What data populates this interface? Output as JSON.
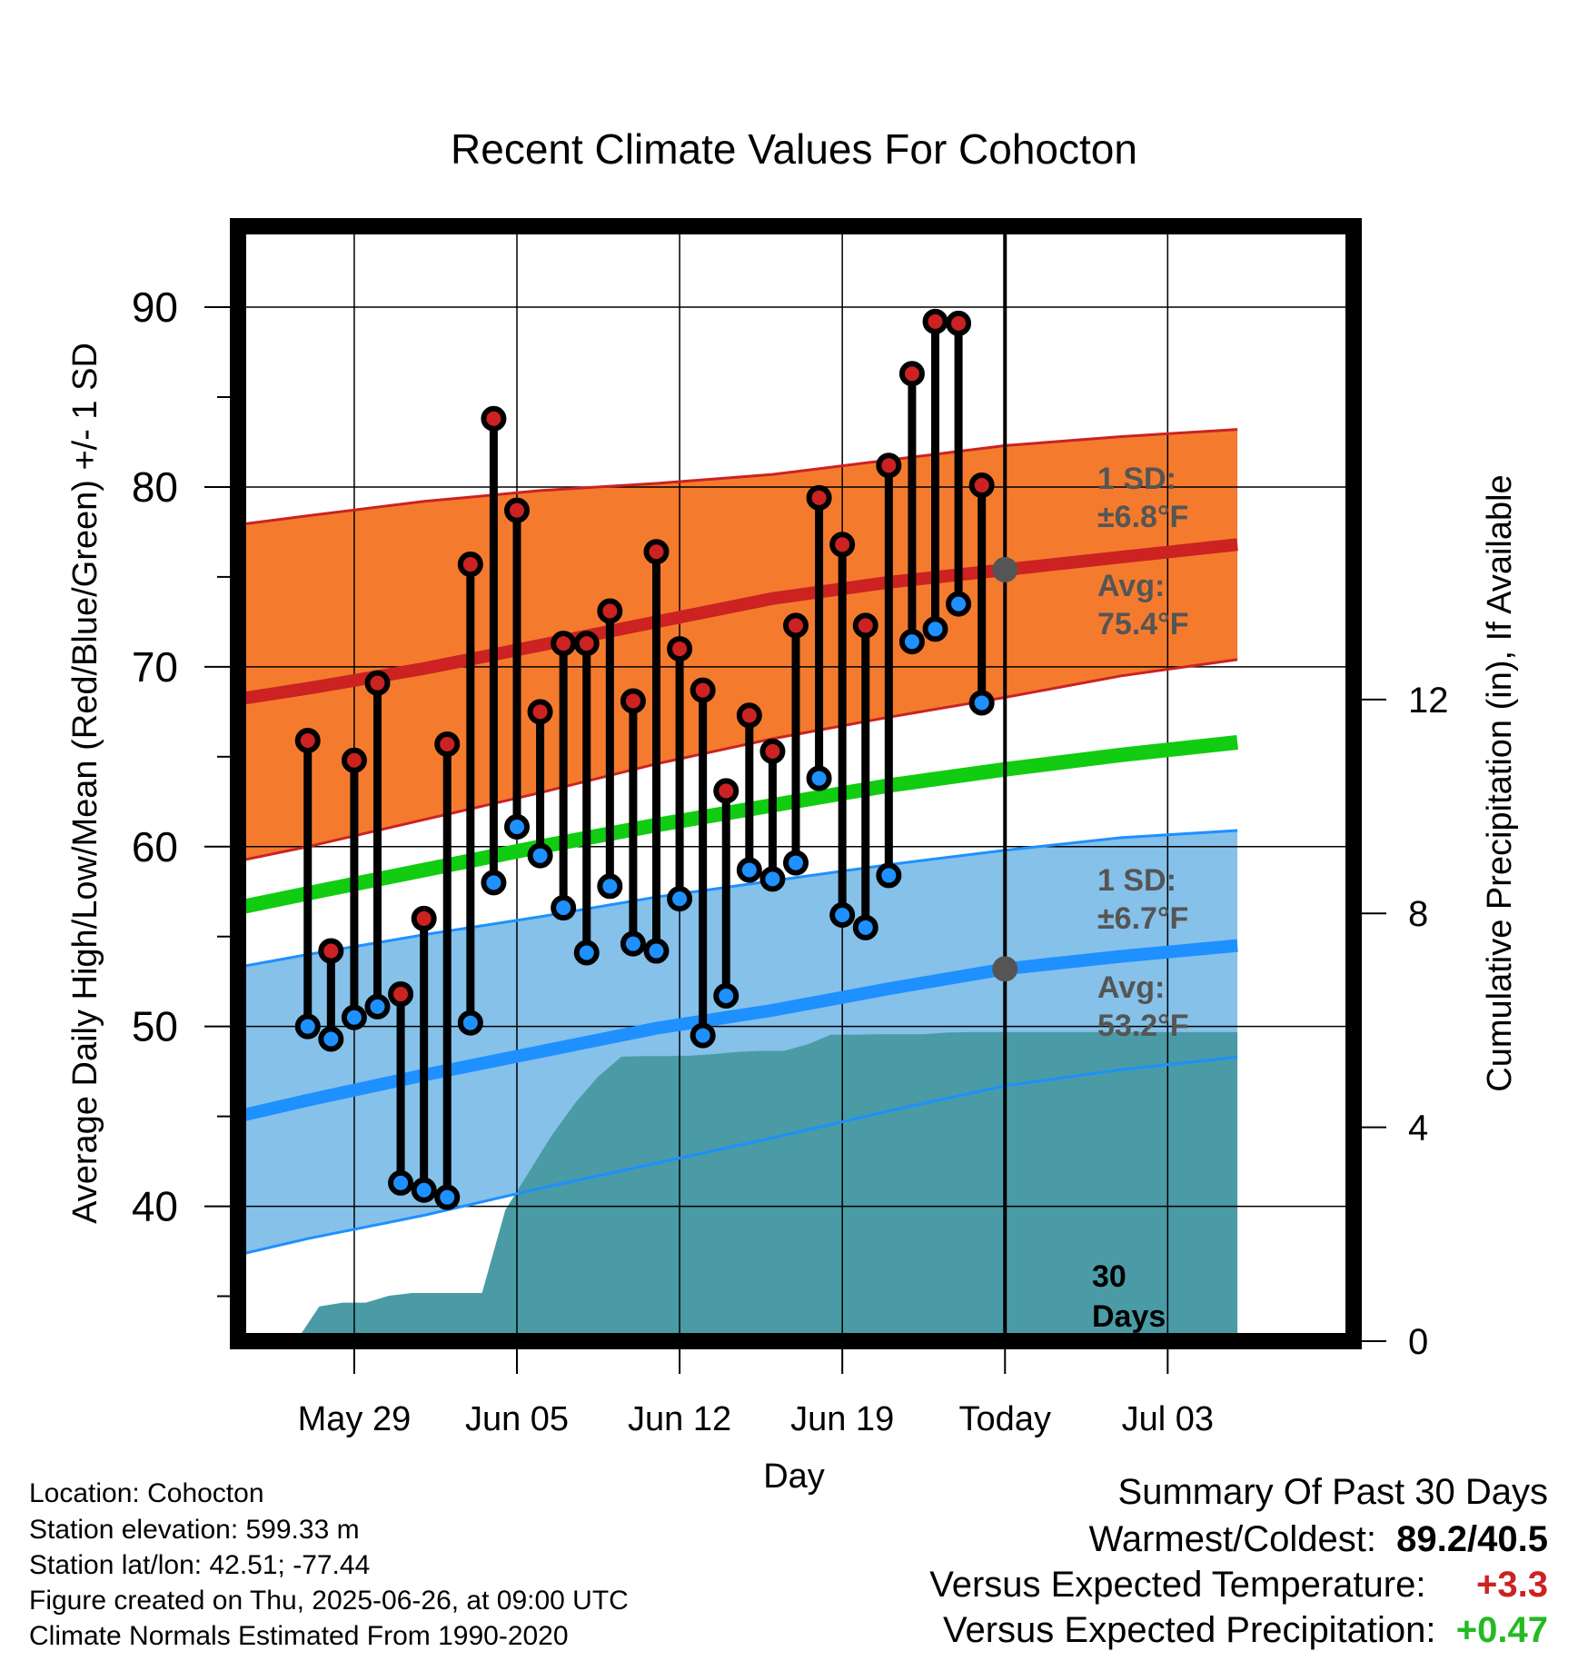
{
  "chart_data": {
    "type": "line",
    "title": "Recent Climate Values For Cohocton",
    "xlabel": "Day",
    "ylabel": "Average Daily High/Low/Mean (Red/Blue/Green) +/- 1 SD",
    "y2label": "Cumulative Precipitation (in), If Available",
    "xlim_days": [
      -33,
      15
    ],
    "ylim": [
      32.5,
      94.5
    ],
    "y2lim": [
      0,
      20.85
    ],
    "x_ticks": [
      {
        "day": -28,
        "label": "May 29"
      },
      {
        "day": -21,
        "label": "Jun 05"
      },
      {
        "day": -14,
        "label": "Jun 12"
      },
      {
        "day": -7,
        "label": "Jun 19"
      },
      {
        "day": 0,
        "label": "Today"
      },
      {
        "day": 7,
        "label": "Jul 03"
      }
    ],
    "y_ticks": [
      40,
      50,
      60,
      70,
      80,
      90
    ],
    "y2_ticks": [
      0,
      4,
      8,
      12
    ],
    "grid": true,
    "series": [
      {
        "name": "High",
        "color": "#cc2222",
        "days": [
          -30,
          -29,
          -28,
          -27,
          -26,
          -25,
          -24,
          -23,
          -22,
          -21,
          -20,
          -19,
          -18,
          -17,
          -16,
          -15,
          -14,
          -13,
          -12,
          -11,
          -10,
          -9,
          -8,
          -7,
          -6,
          -5,
          -4,
          -3,
          -2,
          -1
        ],
        "values": [
          65.9,
          54.2,
          64.8,
          69.1,
          51.8,
          56.0,
          65.7,
          75.7,
          83.8,
          78.7,
          67.5,
          71.3,
          71.3,
          73.1,
          68.1,
          76.4,
          71.0,
          68.7,
          63.1,
          67.3,
          65.3,
          72.3,
          79.4,
          76.8,
          72.3,
          81.2,
          86.3,
          89.2,
          89.1,
          80.1
        ]
      },
      {
        "name": "Low",
        "color": "#2299ee",
        "days": [
          -30,
          -29,
          -28,
          -27,
          -26,
          -25,
          -24,
          -23,
          -22,
          -21,
          -20,
          -19,
          -18,
          -17,
          -16,
          -15,
          -14,
          -13,
          -12,
          -11,
          -10,
          -9,
          -8,
          -7,
          -6,
          -5,
          -4,
          -3,
          -2,
          -1
        ],
        "values": [
          50.0,
          49.3,
          50.5,
          51.1,
          41.3,
          40.9,
          40.5,
          50.2,
          58.0,
          61.1,
          59.5,
          56.6,
          54.1,
          57.8,
          54.6,
          54.2,
          57.1,
          49.5,
          51.7,
          58.7,
          58.2,
          59.1,
          63.8,
          56.2,
          55.5,
          58.4,
          71.4,
          72.1,
          73.5,
          68.0
        ]
      },
      {
        "name": "Normal High",
        "color": "#cc2222",
        "days": [
          -33,
          -30,
          -25,
          -20,
          -15,
          -10,
          -5,
          0,
          5,
          10
        ],
        "values": [
          68.2,
          68.8,
          69.9,
          71.2,
          72.5,
          73.8,
          74.7,
          75.4,
          76.1,
          76.8
        ]
      },
      {
        "name": "Normal High +1 SD",
        "color": "#cc2222",
        "days": [
          -33,
          -30,
          -25,
          -20,
          -15,
          -10,
          -5,
          0,
          5,
          10
        ],
        "values": [
          77.9,
          78.4,
          79.2,
          79.8,
          80.2,
          80.7,
          81.5,
          82.3,
          82.8,
          83.2
        ]
      },
      {
        "name": "Normal High -1 SD",
        "color": "#cc2222",
        "days": [
          -33,
          -30,
          -25,
          -20,
          -15,
          -10,
          -5,
          0,
          5,
          10
        ],
        "values": [
          59.2,
          60.0,
          61.5,
          63.0,
          64.6,
          66.0,
          67.2,
          68.3,
          69.5,
          70.4
        ]
      },
      {
        "name": "Normal Mean",
        "color": "#22cc22",
        "days": [
          -33,
          -30,
          -25,
          -20,
          -15,
          -10,
          -5,
          0,
          5,
          10
        ],
        "values": [
          56.6,
          57.4,
          58.7,
          60.0,
          61.2,
          62.3,
          63.4,
          64.3,
          65.1,
          65.8
        ]
      },
      {
        "name": "Normal Low",
        "color": "#1e90ff",
        "days": [
          -33,
          -30,
          -25,
          -20,
          -15,
          -10,
          -5,
          0,
          5,
          10
        ],
        "values": [
          45.0,
          45.9,
          47.3,
          48.6,
          49.9,
          50.9,
          52.1,
          53.2,
          53.9,
          54.5
        ]
      },
      {
        "name": "Normal Low +1 SD",
        "color": "#1e90ff",
        "days": [
          -33,
          -30,
          -25,
          -20,
          -15,
          -10,
          -5,
          0,
          5,
          10
        ],
        "values": [
          53.3,
          54.0,
          55.1,
          56.1,
          57.2,
          58.1,
          59.0,
          59.8,
          60.5,
          60.9
        ]
      },
      {
        "name": "Normal Low -1 SD",
        "color": "#1e90ff",
        "days": [
          -33,
          -30,
          -25,
          -20,
          -15,
          -10,
          -5,
          0,
          5,
          10
        ],
        "values": [
          37.3,
          38.2,
          39.5,
          41.0,
          42.4,
          43.8,
          45.3,
          46.7,
          47.6,
          48.3
        ]
      },
      {
        "name": "Cumulative Precipitation",
        "color": "#4a9ba6",
        "days": [
          -31.5,
          -30.5,
          -29.5,
          -28.5,
          -27.5,
          -26.5,
          -25.5,
          -24.5,
          -23.5,
          -22.5,
          -21.5,
          -20.5,
          -19.5,
          -18.5,
          -17.5,
          -16.5,
          -15.5,
          -14.5,
          -13.5,
          -12.5,
          -11.5,
          -10.5,
          -9.5,
          -8.5,
          -7.5,
          -6.5,
          -5.5,
          -4.5,
          -3.5,
          -2.5,
          -1.5,
          -0.5,
          10
        ],
        "values": [
          0,
          0,
          0.65,
          0.72,
          0.72,
          0.85,
          0.9,
          0.9,
          0.9,
          0.9,
          2.45,
          3.15,
          3.85,
          4.45,
          4.95,
          5.32,
          5.33,
          5.33,
          5.34,
          5.37,
          5.41,
          5.43,
          5.43,
          5.55,
          5.73,
          5.73,
          5.74,
          5.74,
          5.74,
          5.77,
          5.78,
          5.78,
          5.78
        ]
      }
    ],
    "annotations": {
      "high_sd_line1": "1 SD:",
      "high_sd_line2": "±6.8°F",
      "high_avg_line1": "Avg:",
      "high_avg_line2": "75.4°F",
      "high_avg_value": 75.4,
      "low_sd_line1": "1 SD:",
      "low_sd_line2": "±6.7°F",
      "low_avg_line1": "Avg:",
      "low_avg_line2": "53.2°F",
      "low_avg_value": 53.2,
      "days_line1": "30",
      "days_line2": "Days"
    }
  },
  "colors": {
    "high_band": "#f47b2e",
    "high_line": "#cc2222",
    "low_band": "#85c1e9",
    "low_line": "#1e90ff",
    "mean_line": "#11cc11",
    "precip": "#4a9ba6",
    "annotation": "#555555",
    "positive_red": "#cc2222",
    "positive_green": "#22bb22"
  },
  "footer": {
    "location": "Location: Cohocton",
    "elevation": "Station elevation: 599.33 m",
    "latlon": "Station lat/lon: 42.51; -77.44",
    "created": "Figure created on Thu, 2025-06-26, at 09:00 UTC",
    "normals": "Climate Normals Estimated From 1990-2020"
  },
  "summary": {
    "title": "Summary Of Past 30 Days",
    "warm_cold_label": "Warmest/Coldest:",
    "warm_cold_value": "89.2/40.5",
    "temp_label": "Versus Expected Temperature:",
    "temp_value": "+3.3",
    "precip_label": "Versus Expected Precipitation:",
    "precip_value": "+0.47"
  }
}
